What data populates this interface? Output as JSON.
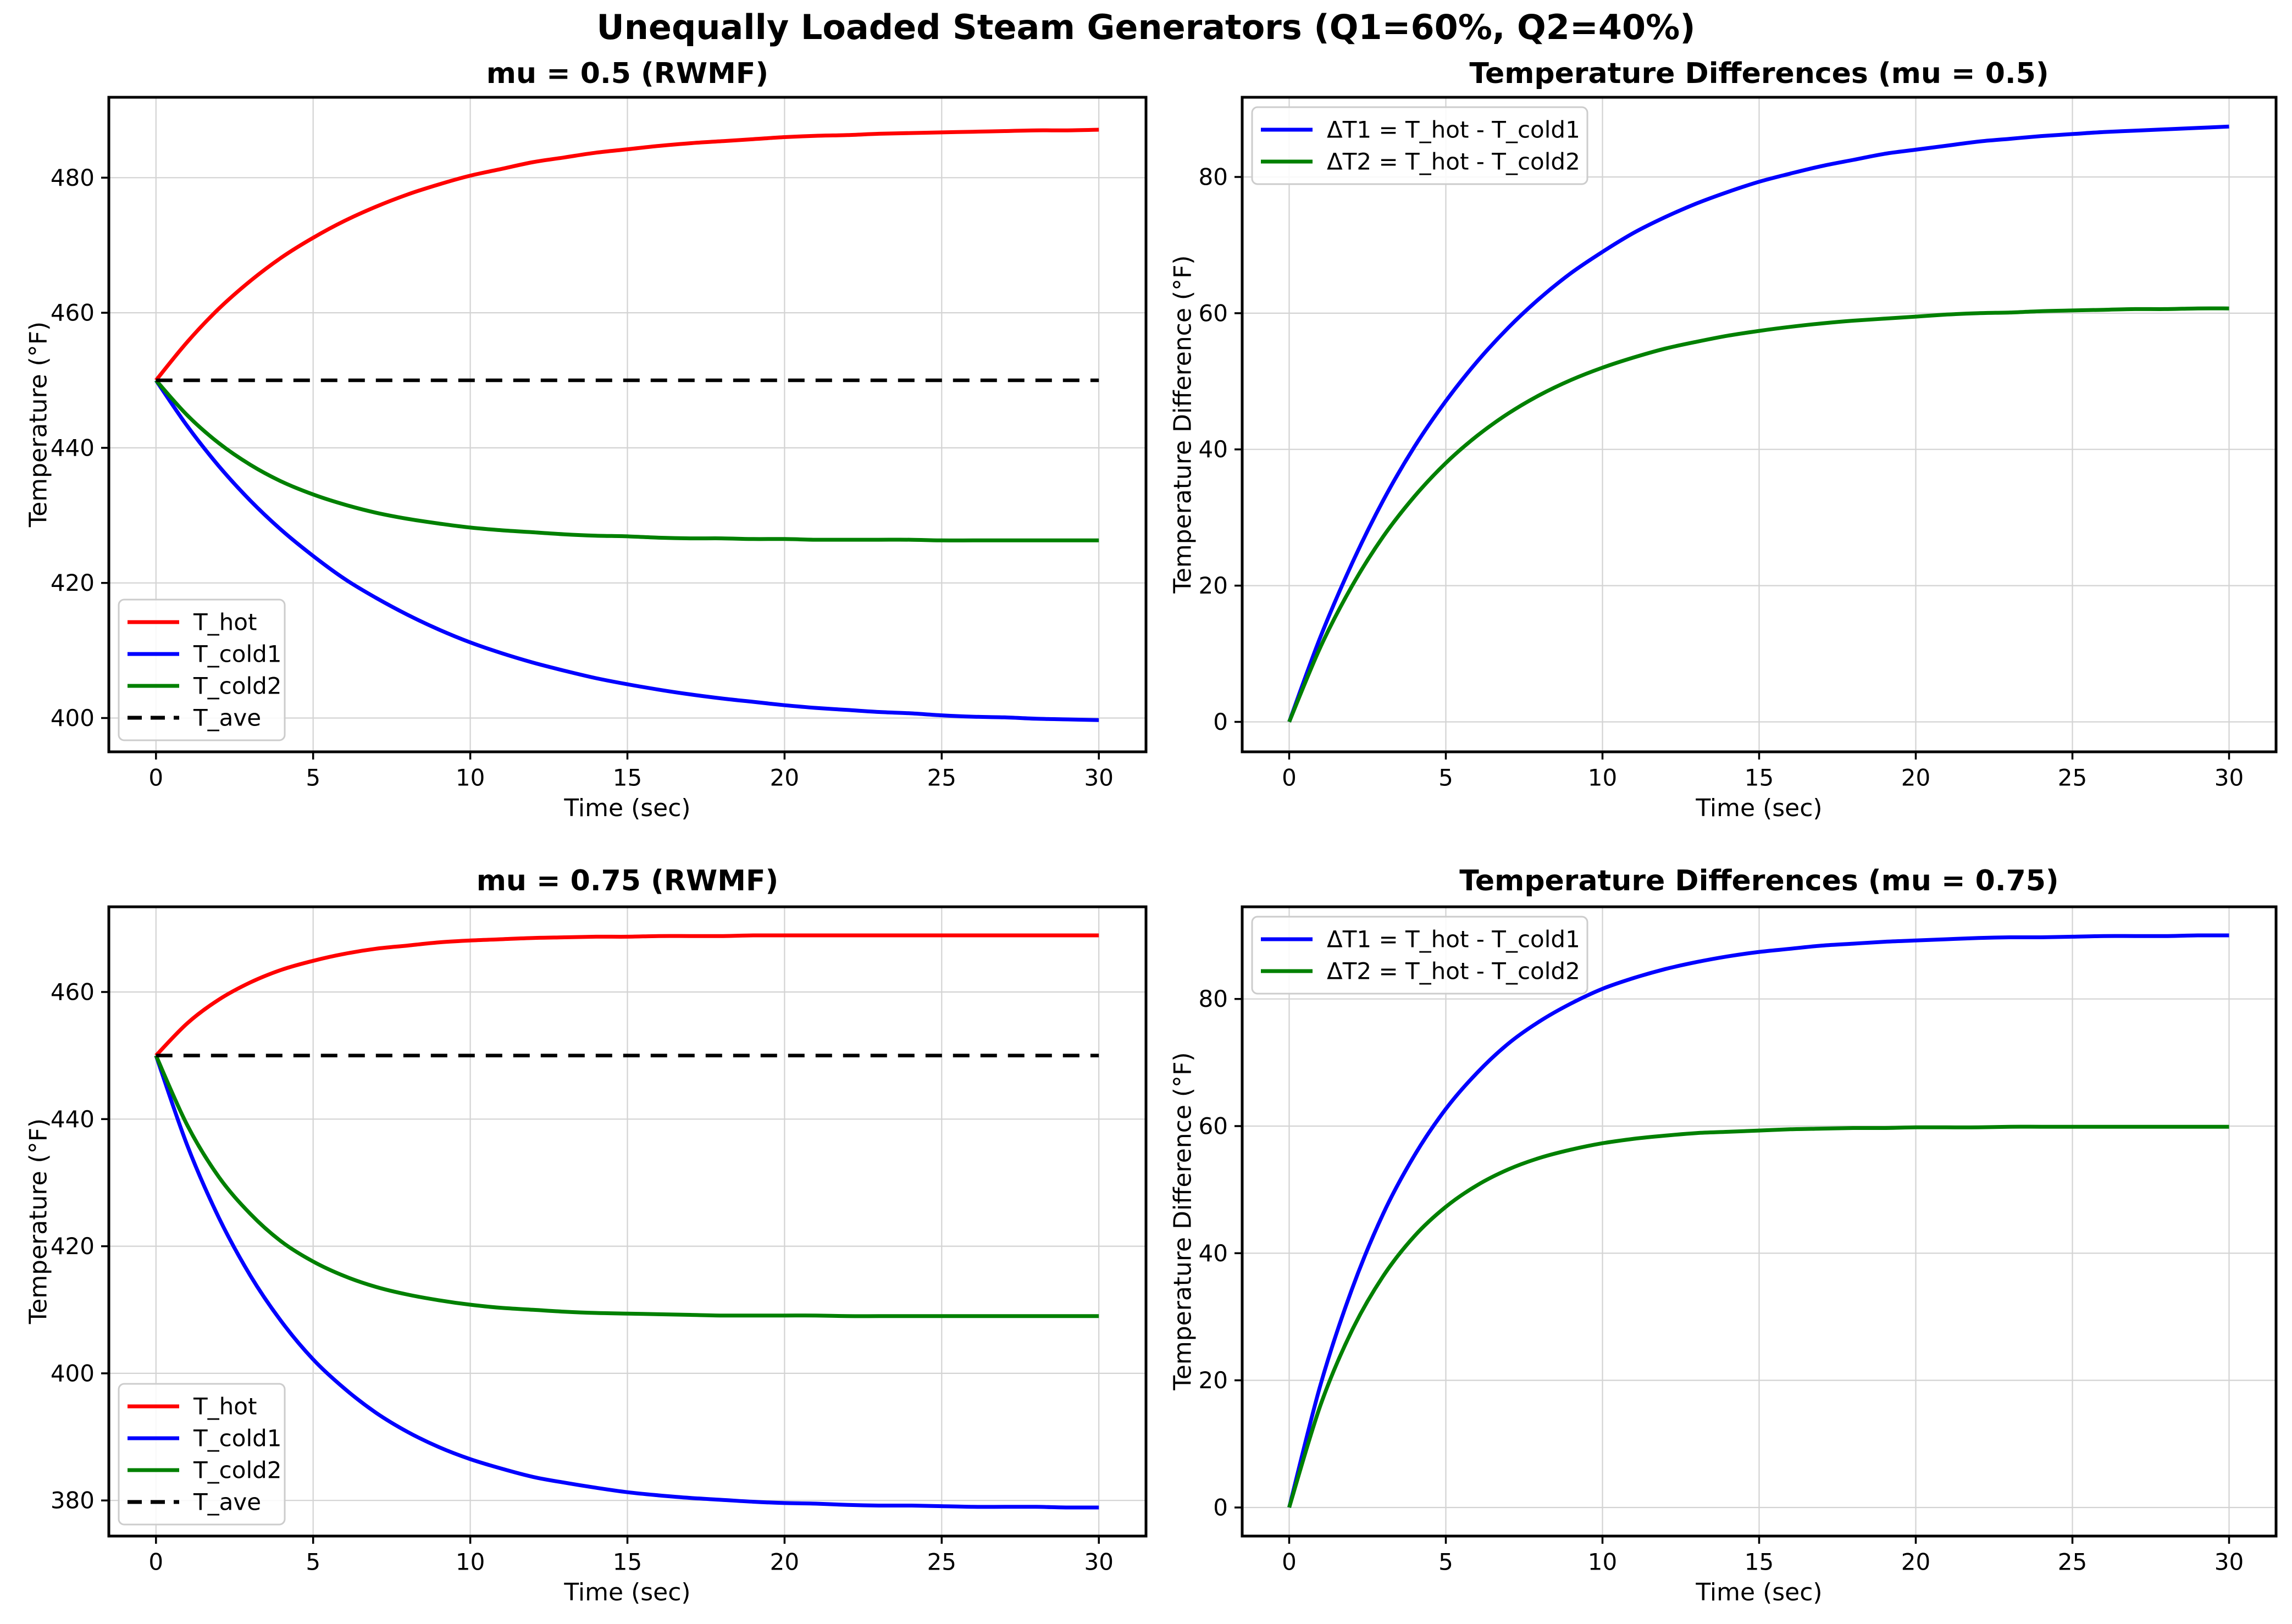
{
  "figure": {
    "suptitle": "Unequally Loaded Steam Generators (Q1=60%, Q2=40%)",
    "background": "#ffffff"
  },
  "colors": {
    "t_hot": "#ff0000",
    "t_cold1": "#0000ff",
    "t_cold2": "#008000",
    "t_ave": "#000000",
    "grid": "#d3d3d3",
    "frame": "#000000",
    "legend_border": "#cccccc"
  },
  "chart_data": {
    "type": "line",
    "suptitle": "Unequally Loaded Steam Generators (Q1=60%, Q2=40%)",
    "plots": [
      {
        "title": "mu = 0.5 (RWMF)",
        "xlabel": "Time (sec)",
        "ylabel": "Temperature (°F)",
        "xlim": [
          -1.5,
          31.5
        ],
        "ylim": [
          395.0,
          491.9
        ],
        "xticks": [
          0,
          5,
          10,
          15,
          20,
          25,
          30
        ],
        "yticks": [
          400,
          420,
          440,
          460,
          480
        ],
        "grid": true,
        "legend_loc": "lower-left",
        "t": [
          0,
          1,
          2,
          3,
          4,
          5,
          6,
          7,
          8,
          9,
          10,
          11,
          12,
          13,
          14,
          15,
          16,
          17,
          18,
          19,
          20,
          21,
          22,
          23,
          24,
          25,
          26,
          27,
          28,
          29,
          30
        ],
        "series": [
          {
            "name": "T_hot",
            "color": "#ff0000",
            "dash": false,
            "values": [
              450,
              455.7,
              460.6,
              464.7,
              468.2,
              471.1,
              473.6,
              475.7,
              477.5,
              479.0,
              480.3,
              481.3,
              482.3,
              483.0,
              483.7,
              484.2,
              484.7,
              485.1,
              485.4,
              485.7,
              486.0,
              486.2,
              486.3,
              486.5,
              486.6,
              486.7,
              486.8,
              486.9,
              487.0,
              487.0,
              487.1
            ]
          },
          {
            "name": "T_cold1",
            "color": "#0000ff",
            "dash": false,
            "values": [
              450,
              443.2,
              437.3,
              432.2,
              427.8,
              424.0,
              420.6,
              417.8,
              415.3,
              413.1,
              411.2,
              409.6,
              408.2,
              407.0,
              405.9,
              405.0,
              404.2,
              403.5,
              402.9,
              402.4,
              401.9,
              401.5,
              401.2,
              400.9,
              400.7,
              400.4,
              400.2,
              400.1,
              399.9,
              399.8,
              399.7
            ]
          },
          {
            "name": "T_cold2",
            "color": "#008000",
            "dash": false,
            "values": [
              450,
              444.8,
              440.7,
              437.5,
              435.0,
              433.1,
              431.6,
              430.4,
              429.5,
              428.8,
              428.2,
              427.8,
              427.5,
              427.2,
              427.0,
              426.9,
              426.7,
              426.6,
              426.6,
              426.5,
              426.5,
              426.4,
              426.4,
              426.4,
              426.4,
              426.3,
              426.3,
              426.3,
              426.3,
              426.3,
              426.3
            ]
          },
          {
            "name": "T_ave",
            "color": "#000000",
            "dash": true,
            "values": [
              450,
              450,
              450,
              450,
              450,
              450,
              450,
              450,
              450,
              450,
              450,
              450,
              450,
              450,
              450,
              450,
              450,
              450,
              450,
              450,
              450,
              450,
              450,
              450,
              450,
              450,
              450,
              450,
              450,
              450,
              450
            ]
          }
        ]
      },
      {
        "title": "Temperature Differences (mu = 0.5)",
        "xlabel": "Time (sec)",
        "ylabel": "Temperature Difference (°F)",
        "xlim": [
          -1.5,
          31.5
        ],
        "ylim": [
          -4.4,
          91.7
        ],
        "xticks": [
          0,
          5,
          10,
          15,
          20,
          25,
          30
        ],
        "yticks": [
          0,
          20,
          40,
          60,
          80
        ],
        "grid": true,
        "legend_loc": "upper-left",
        "t": [
          0,
          1,
          2,
          3,
          4,
          5,
          6,
          7,
          8,
          9,
          10,
          11,
          12,
          13,
          14,
          15,
          16,
          17,
          18,
          19,
          20,
          21,
          22,
          23,
          24,
          25,
          26,
          27,
          28,
          29,
          30
        ],
        "series": [
          {
            "name": "ΔT1 = T_hot - T_cold1",
            "color": "#0000ff",
            "dash": false,
            "values": [
              0,
              12.5,
              23.2,
              32.5,
              40.4,
              47.1,
              52.9,
              57.9,
              62.2,
              65.9,
              69.0,
              71.8,
              74.1,
              76.1,
              77.8,
              79.3,
              80.5,
              81.6,
              82.5,
              83.4,
              84.0,
              84.6,
              85.2,
              85.6,
              86.0,
              86.3,
              86.6,
              86.8,
              87.0,
              87.2,
              87.4
            ]
          },
          {
            "name": "ΔT2 = T_hot - T_cold2",
            "color": "#008000",
            "dash": false,
            "values": [
              0,
              11.0,
              19.9,
              27.2,
              33.1,
              38.0,
              42.0,
              45.3,
              48.0,
              50.2,
              52.0,
              53.5,
              54.8,
              55.8,
              56.7,
              57.4,
              58.0,
              58.5,
              58.9,
              59.2,
              59.5,
              59.8,
              60.0,
              60.1,
              60.3,
              60.4,
              60.5,
              60.6,
              60.6,
              60.7,
              60.7
            ]
          }
        ]
      },
      {
        "title": "mu = 0.75 (RWMF)",
        "xlabel": "Time (sec)",
        "ylabel": "Temperature (°F)",
        "xlim": [
          -1.5,
          31.5
        ],
        "ylim": [
          374.4,
          473.4
        ],
        "xticks": [
          0,
          5,
          10,
          15,
          20,
          25,
          30
        ],
        "yticks": [
          380,
          400,
          420,
          440,
          460
        ],
        "grid": true,
        "legend_loc": "lower-left",
        "t": [
          0,
          1,
          2,
          3,
          4,
          5,
          6,
          7,
          8,
          9,
          10,
          11,
          12,
          13,
          14,
          15,
          16,
          17,
          18,
          19,
          20,
          21,
          22,
          23,
          24,
          25,
          26,
          27,
          28,
          29,
          30
        ],
        "series": [
          {
            "name": "T_hot",
            "color": "#ff0000",
            "dash": false,
            "values": [
              450,
              455.1,
              458.8,
              461.5,
              463.5,
              464.9,
              466.0,
              466.8,
              467.3,
              467.8,
              468.1,
              468.3,
              468.5,
              468.6,
              468.7,
              468.7,
              468.8,
              468.8,
              468.8,
              468.9,
              468.9,
              468.9,
              468.9,
              468.9,
              468.9,
              468.9,
              468.9,
              468.9,
              468.9,
              468.9,
              468.9
            ]
          },
          {
            "name": "T_cold1",
            "color": "#0000ff",
            "dash": false,
            "values": [
              450,
              435.8,
              424.5,
              415.4,
              408.1,
              402.2,
              397.6,
              393.8,
              390.8,
              388.4,
              386.5,
              385.0,
              383.7,
              382.8,
              382.0,
              381.3,
              380.8,
              380.4,
              380.1,
              379.8,
              379.6,
              379.5,
              379.3,
              379.2,
              379.2,
              379.1,
              379.0,
              379.0,
              379.0,
              378.9,
              378.9
            ]
          },
          {
            "name": "T_cold2",
            "color": "#008000",
            "dash": false,
            "values": [
              450,
              439.0,
              430.9,
              425.1,
              420.7,
              417.6,
              415.3,
              413.6,
              412.4,
              411.5,
              410.8,
              410.3,
              410.0,
              409.7,
              409.5,
              409.4,
              409.3,
              409.2,
              409.1,
              409.1,
              409.1,
              409.1,
              409.0,
              409.0,
              409.0,
              409.0,
              409.0,
              409.0,
              409.0,
              409.0,
              409.0
            ]
          },
          {
            "name": "T_ave",
            "color": "#000000",
            "dash": true,
            "values": [
              450,
              450,
              450,
              450,
              450,
              450,
              450,
              450,
              450,
              450,
              450,
              450,
              450,
              450,
              450,
              450,
              450,
              450,
              450,
              450,
              450,
              450,
              450,
              450,
              450,
              450,
              450,
              450,
              450,
              450,
              450
            ]
          }
        ]
      },
      {
        "title": "Temperature Differences (mu = 0.75)",
        "xlabel": "Time (sec)",
        "ylabel": "Temperature Difference (°F)",
        "xlim": [
          -1.5,
          31.5
        ],
        "ylim": [
          -4.5,
          94.5
        ],
        "xticks": [
          0,
          5,
          10,
          15,
          20,
          25,
          30
        ],
        "yticks": [
          0,
          20,
          40,
          60,
          80
        ],
        "grid": true,
        "legend_loc": "upper-left",
        "t": [
          0,
          1,
          2,
          3,
          4,
          5,
          6,
          7,
          8,
          9,
          10,
          11,
          12,
          13,
          14,
          15,
          16,
          17,
          18,
          19,
          20,
          21,
          22,
          23,
          24,
          25,
          26,
          27,
          28,
          29,
          30
        ],
        "series": [
          {
            "name": "ΔT1 = T_hot - T_cold1",
            "color": "#0000ff",
            "dash": false,
            "values": [
              0,
              19.3,
              34.3,
              46.2,
              55.4,
              62.7,
              68.4,
              73.0,
              76.5,
              79.3,
              81.6,
              83.3,
              84.7,
              85.8,
              86.7,
              87.4,
              87.9,
              88.4,
              88.7,
              89.0,
              89.2,
              89.4,
              89.6,
              89.7,
              89.7,
              89.8,
              89.9,
              89.9,
              89.9,
              90.0,
              90.0
            ]
          },
          {
            "name": "ΔT2 = T_hot - T_cold2",
            "color": "#008000",
            "dash": false,
            "values": [
              0,
              16.1,
              27.8,
              36.4,
              42.7,
              47.3,
              50.7,
              53.2,
              55.0,
              56.3,
              57.3,
              58.0,
              58.5,
              58.9,
              59.1,
              59.3,
              59.5,
              59.6,
              59.7,
              59.7,
              59.8,
              59.8,
              59.8,
              59.9,
              59.9,
              59.9,
              59.9,
              59.9,
              59.9,
              59.9,
              59.9
            ]
          }
        ]
      }
    ]
  }
}
